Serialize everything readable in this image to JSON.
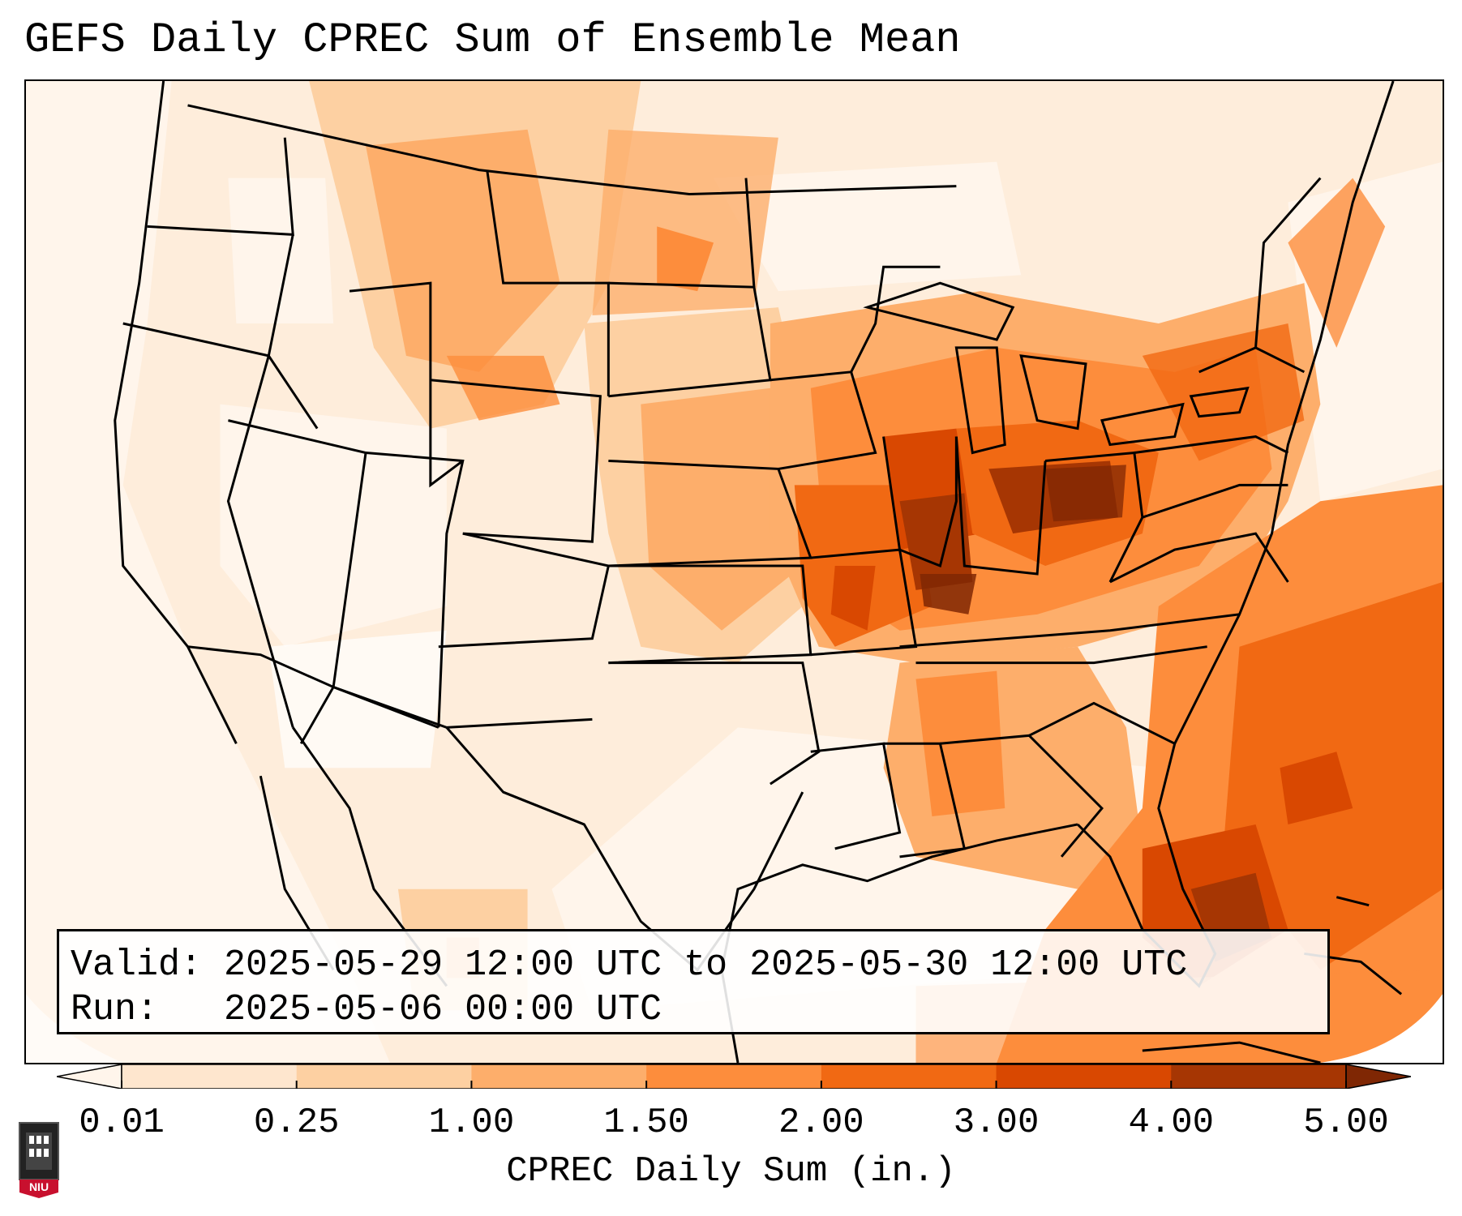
{
  "title": "GEFS Daily CPREC Sum of Ensemble Mean",
  "info": {
    "valid_label": "Valid:",
    "valid_value": "2025-05-29 12:00 UTC to 2025-05-30 12:00 UTC",
    "run_label": "Run:",
    "run_value": "2025-05-06 00:00 UTC"
  },
  "colorbar": {
    "label": "CPREC Daily Sum (in.)",
    "ticks": [
      "0.01",
      "0.25",
      "1.00",
      "1.50",
      "2.00",
      "3.00",
      "4.00",
      "5.00"
    ],
    "colors": [
      "#fff5eb",
      "#fee6ce",
      "#fdd0a2",
      "#fdae6b",
      "#fd8d3c",
      "#f16913",
      "#d94801",
      "#a63603",
      "#7f2704"
    ],
    "extend": "both"
  },
  "logo": {
    "text": "NIU",
    "primary_color": "#c8102e"
  },
  "map": {
    "region": "Contiguous United States",
    "colors": {
      "very_light": "#fff5eb",
      "light": "#fee6ce",
      "light_mid": "#fdd0a2",
      "mid": "#fdae6b",
      "mid_dark": "#fd8d3c",
      "dark": "#f16913",
      "darker": "#d94801",
      "darkest": "#a63603",
      "max": "#7f2704"
    }
  }
}
